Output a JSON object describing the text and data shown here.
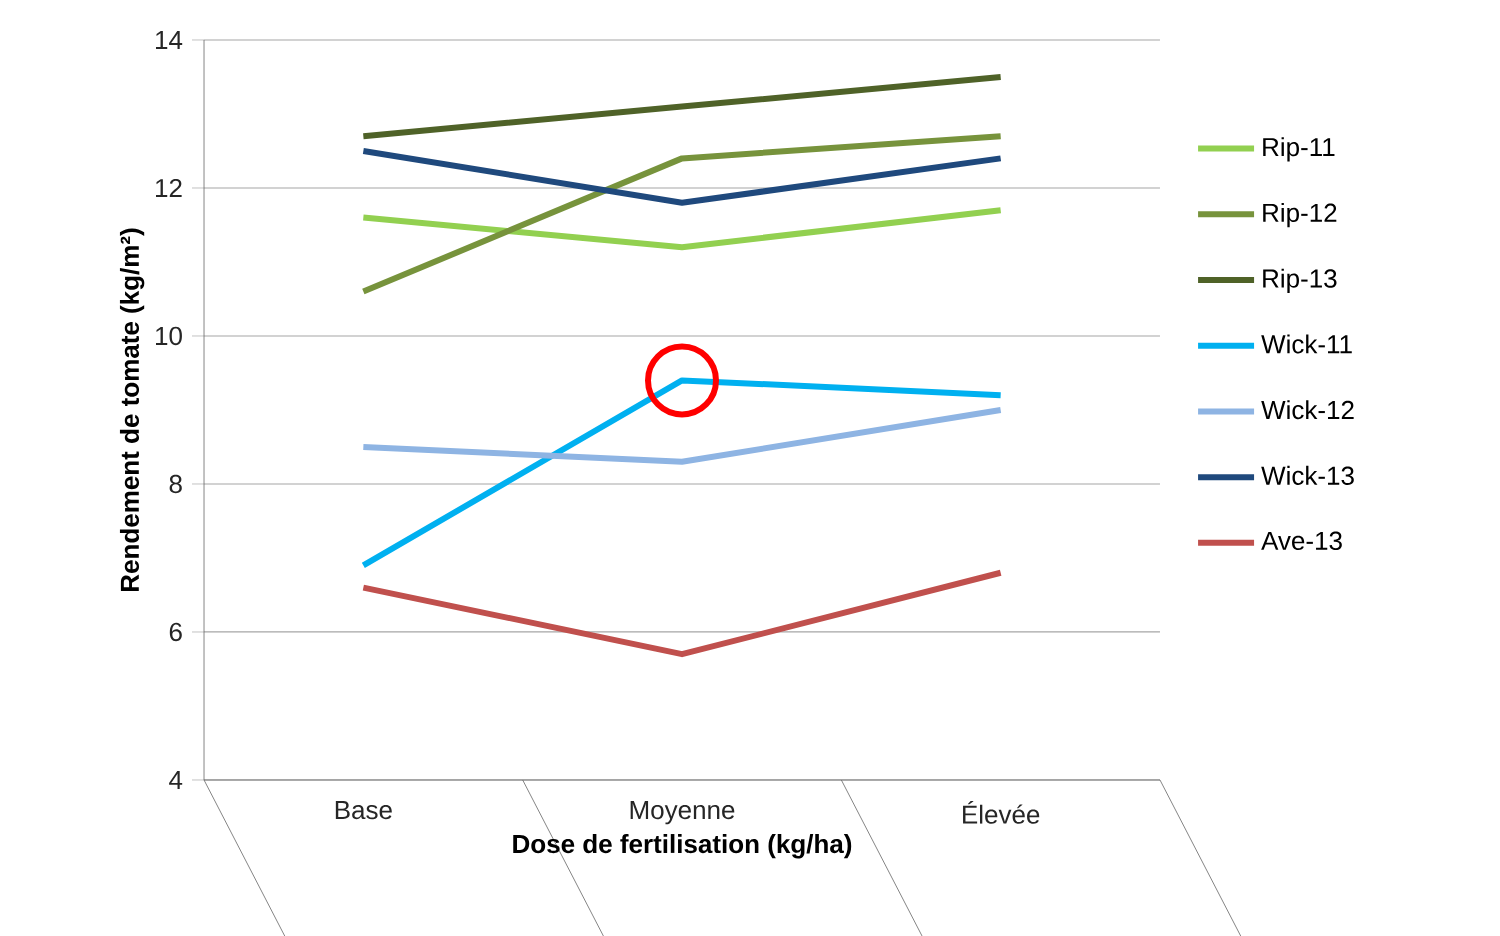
{
  "chart_data": {
    "type": "line",
    "xlabel": "Dose de fertilisation  (kg/ha)",
    "ylabel": "Rendement de tomate (kg/m²)",
    "categories": [
      "Base",
      "Moyenne",
      "Élevée"
    ],
    "series": [
      {
        "name": "Rip-11",
        "color": "#92d050",
        "values": [
          11.6,
          11.2,
          11.7
        ]
      },
      {
        "name": "Rip-12",
        "color": "#77933c",
        "values": [
          10.6,
          12.4,
          12.7
        ]
      },
      {
        "name": "Rip-13",
        "color": "#4f6228",
        "values": [
          12.7,
          13.1,
          13.5
        ]
      },
      {
        "name": "Wick-11",
        "color": "#00b0f0",
        "values": [
          6.9,
          9.4,
          9.2
        ]
      },
      {
        "name": "Wick-12",
        "color": "#8eb4e3",
        "values": [
          8.5,
          8.3,
          9.0
        ]
      },
      {
        "name": "Wick-13",
        "color": "#1f497d",
        "values": [
          12.5,
          11.8,
          12.4
        ]
      },
      {
        "name": "Ave-13",
        "color": "#c0504d",
        "values": [
          6.6,
          5.7,
          6.8
        ]
      }
    ],
    "ylim": [
      4,
      14
    ],
    "yticks": [
      4,
      6,
      8,
      10,
      12,
      14
    ],
    "grid": "y",
    "legend": "right",
    "marker": "none",
    "line_style": "solid"
  }
}
